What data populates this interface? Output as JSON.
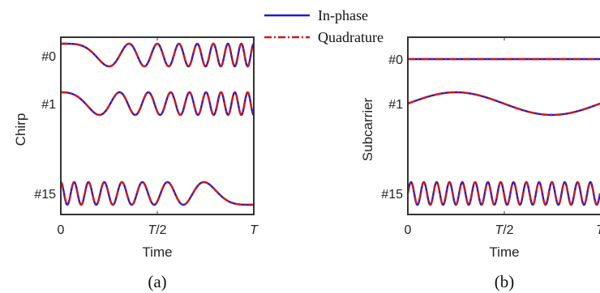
{
  "legend": {
    "items": [
      {
        "label": "In-phase",
        "color": "#1a1adc",
        "dash": "solid"
      },
      {
        "label": "Quadrature",
        "color": "#cc1a1a",
        "dash": "dash-dot"
      }
    ]
  },
  "captions": [
    "(a)",
    "(b)"
  ],
  "chart_data": [
    {
      "type": "line",
      "panel": "(a)",
      "xlabel": "Time",
      "ylabel": "Chirp",
      "x_ticks": [
        "0",
        "T/2",
        "T"
      ],
      "y_ticks": [
        "#0",
        "#1",
        "#15"
      ],
      "grid": false,
      "series": [
        {
          "name": "In-phase",
          "row": "#0",
          "signal": "up-chirp cosine",
          "start_freq_cycles": 0,
          "end_freq_cycles": 16,
          "phase_offset": 0.5
        },
        {
          "name": "Quadrature",
          "row": "#0",
          "signal": "up-chirp sine",
          "start_freq_cycles": 0,
          "end_freq_cycles": 16,
          "phase_offset": 0.5
        },
        {
          "name": "In-phase",
          "row": "#1",
          "signal": "up-chirp cosine",
          "start_freq_cycles": 1,
          "end_freq_cycles": 16,
          "phase_offset": 0.5
        },
        {
          "name": "Quadrature",
          "row": "#1",
          "signal": "up-chirp sine",
          "start_freq_cycles": 1,
          "end_freq_cycles": 16,
          "phase_offset": 0.5
        },
        {
          "name": "In-phase",
          "row": "#15",
          "signal": "down-chirp cosine",
          "start_freq_cycles": 15,
          "end_freq_cycles": 0,
          "phase_offset": 0.5
        },
        {
          "name": "Quadrature",
          "row": "#15",
          "signal": "down-chirp sine",
          "start_freq_cycles": 15,
          "end_freq_cycles": 0,
          "phase_offset": 0.5
        }
      ]
    },
    {
      "type": "line",
      "panel": "(b)",
      "xlabel": "Time",
      "ylabel": "Subcarrier",
      "x_ticks": [
        "0",
        "T/2",
        "T"
      ],
      "y_ticks": [
        "#0",
        "#1",
        "#15"
      ],
      "grid": false,
      "series": [
        {
          "name": "In-phase",
          "row": "#0",
          "signal": "cosine",
          "cycles_per_T": 0
        },
        {
          "name": "Quadrature",
          "row": "#0",
          "signal": "sine",
          "cycles_per_T": 0
        },
        {
          "name": "In-phase",
          "row": "#1",
          "signal": "cosine",
          "cycles_per_T": 1
        },
        {
          "name": "Quadrature",
          "row": "#1",
          "signal": "sine",
          "cycles_per_T": 1
        },
        {
          "name": "In-phase",
          "row": "#15",
          "signal": "cosine",
          "cycles_per_T": 15
        },
        {
          "name": "Quadrature",
          "row": "#15",
          "signal": "sine",
          "cycles_per_T": 15
        }
      ]
    }
  ]
}
